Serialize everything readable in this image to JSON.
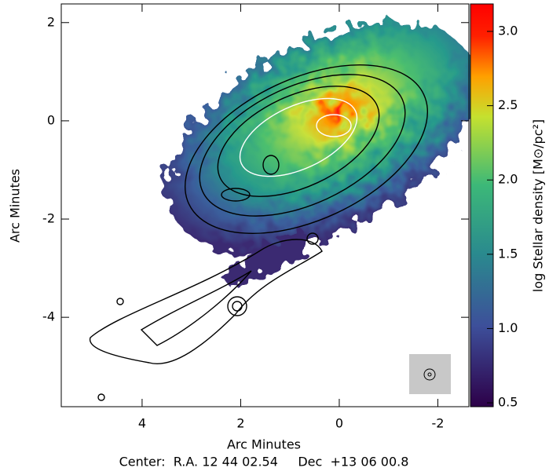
{
  "chart_data": {
    "type": "image",
    "xlabel": "Arc Minutes",
    "ylabel": "Arc Minutes",
    "xlim": [
      5.64,
      -2.63
    ],
    "ylim": [
      -5.82,
      2.38
    ],
    "xticks": [
      4,
      2,
      0,
      -2
    ],
    "yticks": [
      -4,
      -2,
      0,
      2
    ],
    "colorbar": {
      "label": "log Stellar density [M⊙/pc²]",
      "lim": [
        0.474,
        3.185
      ],
      "ticks": [
        0.5,
        {
          "value": 1,
          "label": "1.0"
        },
        1.5,
        {
          "value": 2,
          "label": "2.0"
        },
        2.5,
        {
          "value": 3,
          "label": "3.0"
        }
      ]
    },
    "footer": "Center:  R.A. 12 44 02.54     Dec  +13 06 00.8"
  }
}
